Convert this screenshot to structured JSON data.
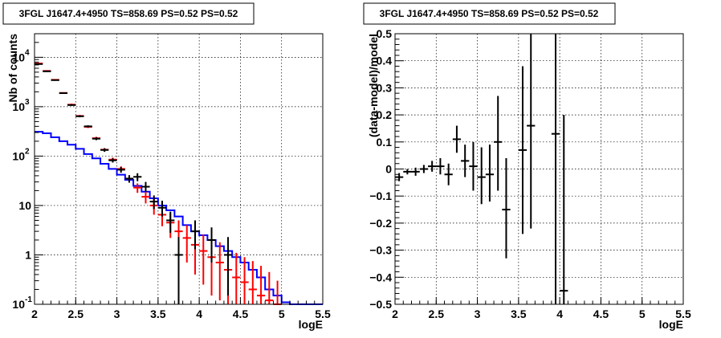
{
  "chart_data": [
    {
      "type": "line",
      "title": "3FGL J1647.4+4950 TS=858.69 PS=0.52 PS=0.52",
      "xlabel": "logE",
      "ylabel": "Nb of counts",
      "xlim": [
        2,
        5.5
      ],
      "ylim": [
        0.1,
        30000
      ],
      "yscale": "log",
      "grid": true,
      "x_ticks": [
        "2",
        "2.5",
        "3",
        "3.5",
        "4",
        "4.5",
        "5",
        "5.5"
      ],
      "y_ticks": [
        {
          "value": 0.1,
          "label": "10",
          "sup": "-1"
        },
        {
          "value": 1,
          "label": "1",
          "sup": ""
        },
        {
          "value": 10,
          "label": "10",
          "sup": ""
        },
        {
          "value": 100,
          "label": "10",
          "sup": "2"
        },
        {
          "value": 1000,
          "label": "10",
          "sup": "3"
        },
        {
          "value": 10000,
          "label": "10",
          "sup": "4"
        }
      ],
      "series": [
        {
          "color": "#0000ff",
          "style": "step",
          "x": [
            2.05,
            2.15,
            2.25,
            2.35,
            2.45,
            2.55,
            2.65,
            2.75,
            2.85,
            2.95,
            3.05,
            3.15,
            3.25,
            3.35,
            3.45,
            3.55,
            3.65,
            3.75,
            3.85,
            3.95,
            4.05,
            4.15,
            4.25,
            4.35,
            4.45,
            4.55,
            4.65,
            4.75,
            4.85,
            4.95,
            5.05,
            5.15,
            5.25,
            5.35,
            5.45
          ],
          "y": [
            310,
            290,
            240,
            200,
            170,
            140,
            110,
            90,
            70,
            55,
            42,
            33,
            25,
            19,
            14,
            10,
            8,
            6,
            4,
            3,
            2.5,
            2,
            1.5,
            1.2,
            0.9,
            0.7,
            0.5,
            0.35,
            0.2,
            0.15,
            0.11,
            0.1,
            0.1,
            0.1,
            0.1
          ]
        },
        {
          "color": "#ff0000",
          "style": "points",
          "x": [
            2.05,
            2.15,
            2.25,
            2.35,
            2.45,
            2.55,
            2.65,
            2.75,
            2.85,
            2.95,
            3.05,
            3.15,
            3.25,
            3.35,
            3.45,
            3.55,
            3.65,
            3.75,
            3.85,
            3.95,
            4.05,
            4.15,
            4.25,
            4.35,
            4.45,
            4.55,
            4.65,
            4.75,
            4.85,
            4.95
          ],
          "y": [
            7500,
            5300,
            3500,
            1900,
            1100,
            650,
            390,
            230,
            135,
            85,
            55,
            35,
            23,
            15,
            10,
            6.5,
            4.5,
            3,
            2.2,
            1.6,
            1.2,
            0.9,
            0.7,
            0.5,
            0.35,
            0.28,
            0.2,
            0.15,
            0.12,
            0.1
          ],
          "y_low": [
            7300,
            5150,
            3400,
            1850,
            1050,
            620,
            370,
            215,
            125,
            77,
            48,
            29,
            18,
            11,
            6.5,
            3.8,
            2.2,
            1.2,
            0.7,
            0.4,
            0.25,
            0.15,
            0.12,
            0.1,
            0.1,
            0.1,
            0.1,
            0.1,
            0.1,
            0.1
          ],
          "y_high": [
            7700,
            5450,
            3600,
            1950,
            1150,
            680,
            410,
            245,
            145,
            93,
            62,
            41,
            28,
            19,
            13.5,
            9.2,
            7,
            5,
            4,
            3.2,
            2.6,
            2.1,
            1.8,
            1.4,
            1.1,
            0.9,
            0.75,
            0.6,
            0.45,
            0.3
          ]
        },
        {
          "color": "#000000",
          "style": "points",
          "x": [
            2.05,
            2.15,
            2.25,
            2.35,
            2.45,
            2.55,
            2.65,
            2.75,
            2.85,
            2.95,
            3.05,
            3.15,
            3.25,
            3.35,
            3.45,
            3.55,
            3.65,
            3.75,
            3.95,
            4.15,
            4.35
          ],
          "y": [
            7300,
            5200,
            3450,
            1880,
            1080,
            640,
            400,
            225,
            133,
            82,
            53,
            35,
            38,
            24,
            12,
            9,
            5,
            1,
            3,
            2,
            1
          ],
          "y_low": [
            7100,
            5050,
            3350,
            1830,
            1040,
            610,
            380,
            210,
            122,
            74,
            46,
            29,
            31,
            19,
            8.5,
            6,
            2.8,
            0.1,
            1.3,
            0.7,
            0.15
          ],
          "y_high": [
            7500,
            5350,
            3550,
            1930,
            1120,
            670,
            420,
            240,
            144,
            90,
            60,
            41,
            45,
            30,
            16,
            12.5,
            7.5,
            2.3,
            5,
            3.6,
            2.3
          ]
        }
      ]
    },
    {
      "type": "scatter",
      "title": "3FGL J1647.4+4950 TS=858.69 PS=0.52 PS=0.52",
      "xlabel": "logE",
      "ylabel": "(data-model)/model",
      "xlim": [
        2,
        5.5
      ],
      "ylim": [
        -0.5,
        0.5
      ],
      "grid": true,
      "x_ticks": [
        "2",
        "2.5",
        "3",
        "3.5",
        "4",
        "4.5",
        "5",
        "5.5"
      ],
      "y_ticks": [
        "−0.5",
        "−0.4",
        "−0.3",
        "−0.2",
        "−0.1",
        "0",
        "0.1",
        "0.2",
        "0.3",
        "0.4",
        "0.5"
      ],
      "series": [
        {
          "color": "#000000",
          "x": [
            2.05,
            2.15,
            2.25,
            2.35,
            2.45,
            2.55,
            2.65,
            2.75,
            2.85,
            2.95,
            3.05,
            3.15,
            3.25,
            3.35,
            3.55,
            3.65,
            3.95,
            4.05
          ],
          "y": [
            -0.03,
            -0.01,
            -0.01,
            0.0,
            0.01,
            0.01,
            -0.02,
            0.11,
            0.03,
            0.01,
            -0.03,
            -0.02,
            0.1,
            -0.15,
            0.07,
            0.16,
            0.13,
            -0.45
          ],
          "y_low": [
            -0.045,
            -0.02,
            -0.025,
            -0.015,
            -0.01,
            -0.02,
            -0.06,
            0.06,
            -0.03,
            -0.08,
            -0.13,
            -0.12,
            -0.08,
            -0.33,
            -0.24,
            -0.22,
            -0.5,
            -0.5
          ],
          "y_high": [
            -0.015,
            0.0,
            0.005,
            0.015,
            0.03,
            0.04,
            0.02,
            0.16,
            0.09,
            0.1,
            0.08,
            0.09,
            0.27,
            0.04,
            0.38,
            0.5,
            0.5,
            0.2
          ]
        }
      ]
    }
  ]
}
